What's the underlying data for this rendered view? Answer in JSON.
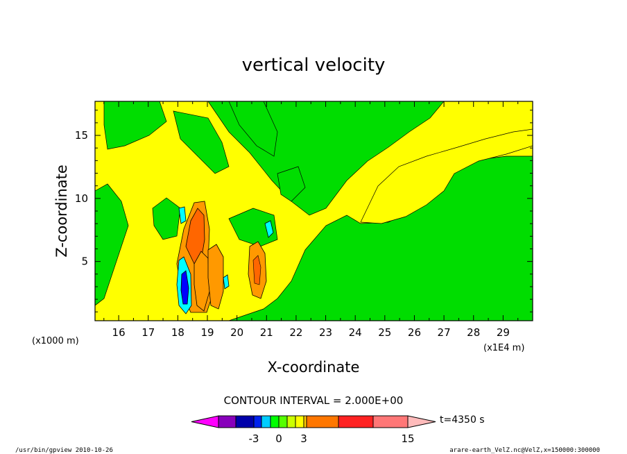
{
  "chart_data": {
    "type": "heatmap",
    "title": "vertical velocity",
    "xlabel": "X-coordinate",
    "ylabel": "Z-coordinate",
    "x_unit_label": "(x1E4 m)",
    "y_unit_label": "(x1000 m)",
    "xlim": [
      15.2,
      30.0
    ],
    "ylim": [
      0.3,
      17.7
    ],
    "x_ticks": [
      "16",
      "17",
      "18",
      "19",
      "20",
      "21",
      "22",
      "23",
      "24",
      "25",
      "26",
      "27",
      "28",
      "29"
    ],
    "x_tick_values": [
      16,
      17,
      18,
      19,
      20,
      21,
      22,
      23,
      24,
      25,
      26,
      27,
      28,
      29
    ],
    "y_ticks": [
      "5",
      "10",
      "15"
    ],
    "y_tick_values": [
      5,
      10,
      15
    ],
    "contour_interval_text": "CONTOUR INTERVAL = 2.000E+00",
    "contour_interval": 2.0,
    "time_label": "t=4350 s",
    "colorbar": {
      "labels": [
        "-3",
        "0",
        "3",
        "15"
      ],
      "label_values": [
        -3,
        0,
        3,
        15
      ],
      "colors": [
        "#ff00ff",
        "#8800bb",
        "#0000aa",
        "#0022ee",
        "#00ccff",
        "#00ff00",
        "#55ff00",
        "#ccff00",
        "#ffff00",
        "#ffcc00",
        "#ff7700",
        "#ff2222",
        "#ff7777",
        "#ffbbbb"
      ]
    },
    "colors": {
      "background": "#00dd00",
      "weak_positive": "#ffff00",
      "moderate_positive": "#ff9900",
      "strong_positive": "#ff6600",
      "weak_negative": "#00ffff",
      "strong_negative": "#0000ff"
    }
  },
  "footer": {
    "left": "/usr/bin/gpview   2010-10-26",
    "right": "arare-earth_VelZ.nc@VelZ,x=150000:300000"
  }
}
